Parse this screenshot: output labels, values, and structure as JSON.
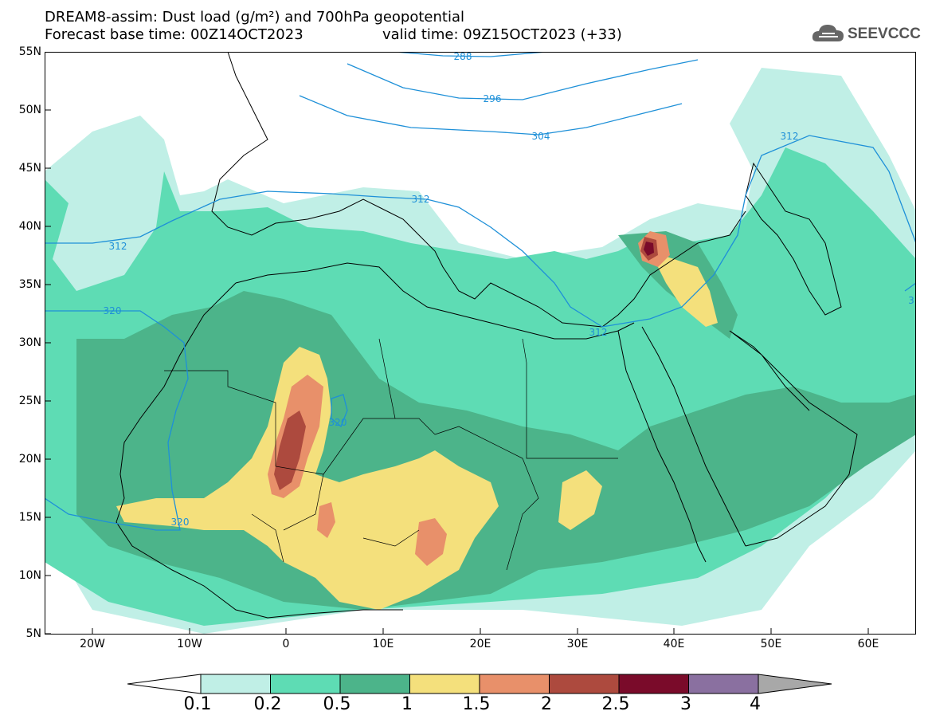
{
  "title": {
    "line1": "DREAM8-assim: Dust load (g/m²) and 700hPa geopotential",
    "line2": "Forecast base time: 00Z14OCT2023",
    "valid": "valid time: 09Z15OCT2023 (+33)"
  },
  "logo": {
    "text": "SEEVCCC",
    "icon": "cloud-logo-icon"
  },
  "lat_labels": [
    "55N",
    "50N",
    "45N",
    "40N",
    "35N",
    "30N",
    "25N",
    "20N",
    "15N",
    "10N",
    "5N"
  ],
  "lon_labels": [
    "20W",
    "10W",
    "0",
    "10E",
    "20E",
    "30E",
    "40E",
    "50E",
    "60E"
  ],
  "contour_labels": [
    "288",
    "296",
    "304",
    "312",
    "312",
    "312",
    "312",
    "320",
    "320",
    "320",
    "3"
  ],
  "colorbar": {
    "labels": [
      "0.1",
      "0.2",
      "0.5",
      "1",
      "1.5",
      "2",
      "2.5",
      "3",
      "4"
    ],
    "colors": [
      "#c0efe6",
      "#5edcb4",
      "#4cb48a",
      "#f4e07c",
      "#e8906a",
      "#ad4a3e",
      "#7a0b2a",
      "#8a70a0"
    ]
  },
  "colors": {
    "contour": "#1e90d8",
    "land_line": "#000000",
    "dust_min": "#c0efe6",
    "dust_low": "#5edcb4",
    "dust_mid": "#4cb48a",
    "dust_high": "#f4e07c",
    "dust_higher": "#e8906a",
    "dust_very_high": "#ad4a3e",
    "dust_extreme": "#7a0b2a"
  }
}
